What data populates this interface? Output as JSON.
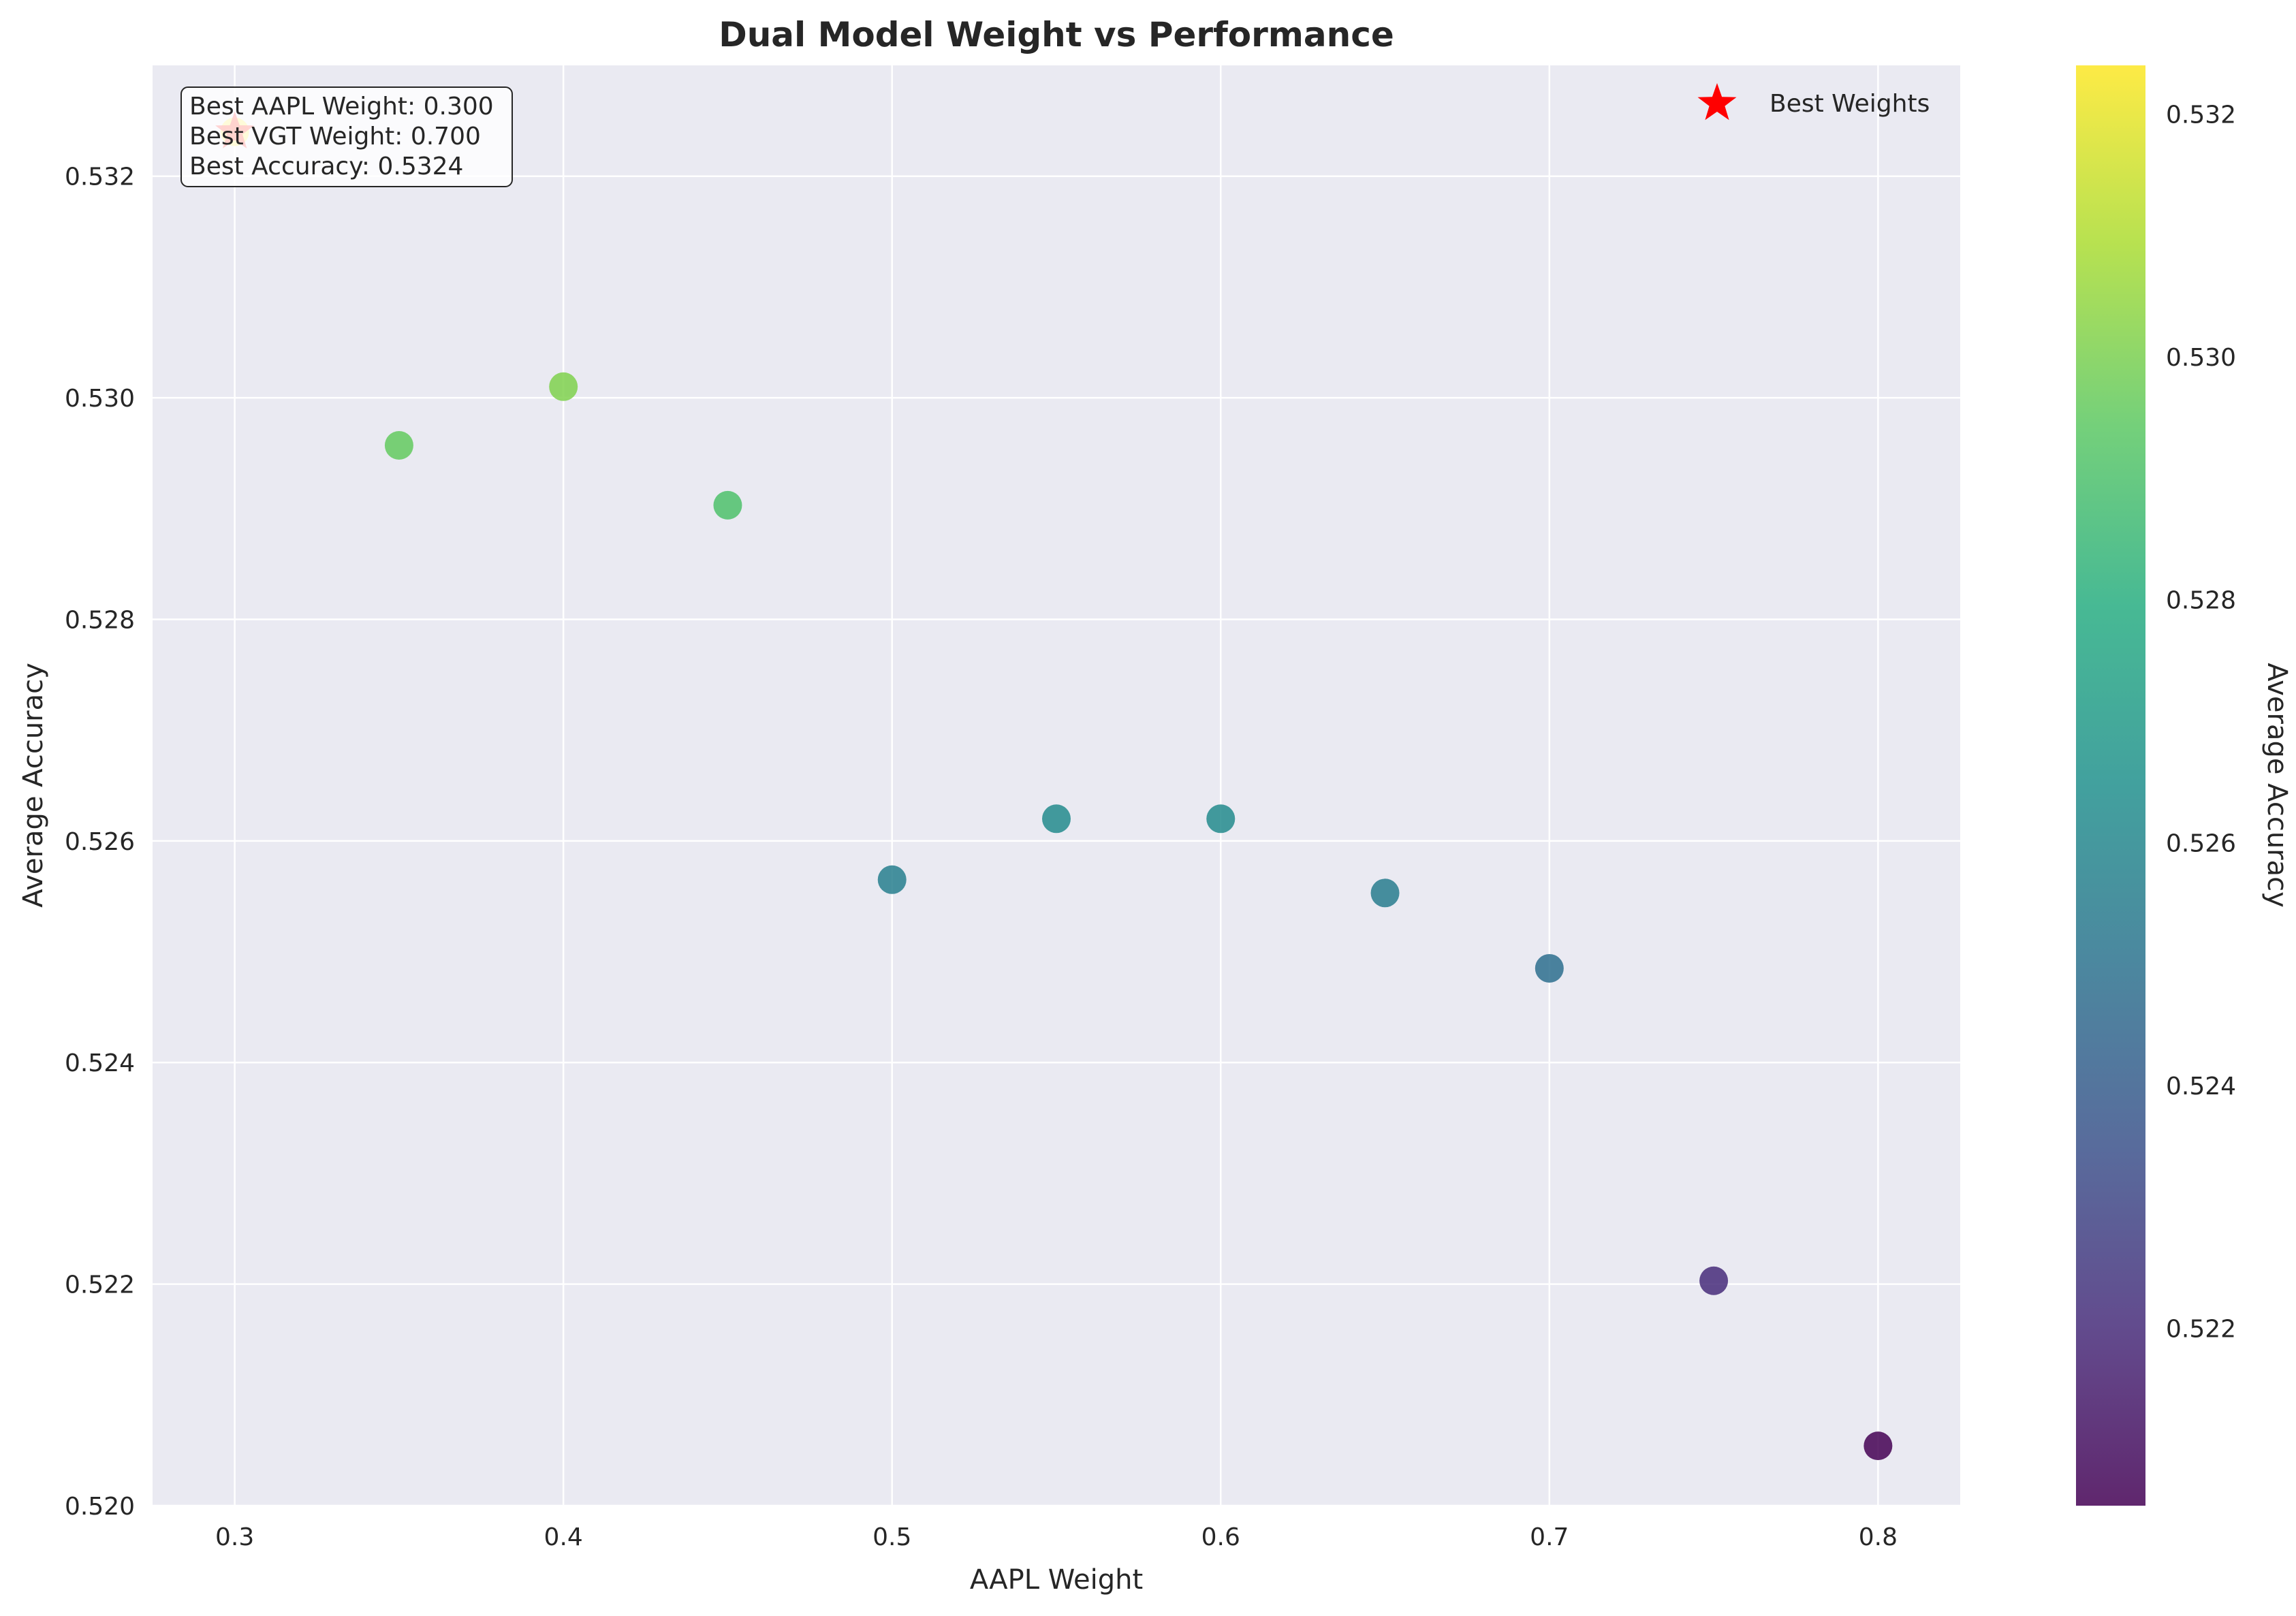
{
  "chart_data": {
    "type": "scatter",
    "title": "Dual Model Weight vs Performance",
    "xlabel": "AAPL Weight",
    "ylabel": "Average Accuracy",
    "xlim": [
      0.275,
      0.825
    ],
    "ylim": [
      0.52,
      0.533
    ],
    "xticks": [
      0.3,
      0.4,
      0.5,
      0.6,
      0.7,
      0.8
    ],
    "xtick_labels": [
      "0.3",
      "0.4",
      "0.5",
      "0.6",
      "0.7",
      "0.8"
    ],
    "yticks": [
      0.52,
      0.522,
      0.524,
      0.526,
      0.528,
      0.53,
      0.532
    ],
    "ytick_labels": [
      "0.520",
      "0.522",
      "0.524",
      "0.526",
      "0.528",
      "0.530",
      "0.532"
    ],
    "grid": true,
    "points": {
      "x": [
        0.3,
        0.35,
        0.4,
        0.45,
        0.5,
        0.55,
        0.6,
        0.65,
        0.7,
        0.75,
        0.8
      ],
      "y": [
        0.5324,
        0.52957,
        0.5301,
        0.52903,
        0.52565,
        0.5262,
        0.5262,
        0.52553,
        0.52485,
        0.52203,
        0.52054
      ]
    },
    "best_point": {
      "x": 0.3,
      "y": 0.5324,
      "label": "Best Weights",
      "color": "#ff0000"
    },
    "legend": {
      "position": "top-right",
      "entries": [
        "Best Weights"
      ]
    },
    "annotation": {
      "position": "top-left",
      "lines": [
        "Best AAPL Weight: 0.300",
        "Best VGT Weight: 0.700",
        "Best Accuracy: 0.5324"
      ]
    },
    "colorbar": {
      "label": "Average Accuracy",
      "colormap": "viridis",
      "range": [
        0.52054,
        0.5324
      ],
      "ticks": [
        0.522,
        0.524,
        0.526,
        0.528,
        0.53,
        0.532
      ],
      "tick_labels": [
        "0.522",
        "0.524",
        "0.526",
        "0.528",
        "0.530",
        "0.532"
      ]
    }
  },
  "colors": {
    "plot_background": "#eaeaf2",
    "grid": "#ffffff",
    "text": "#262626"
  }
}
